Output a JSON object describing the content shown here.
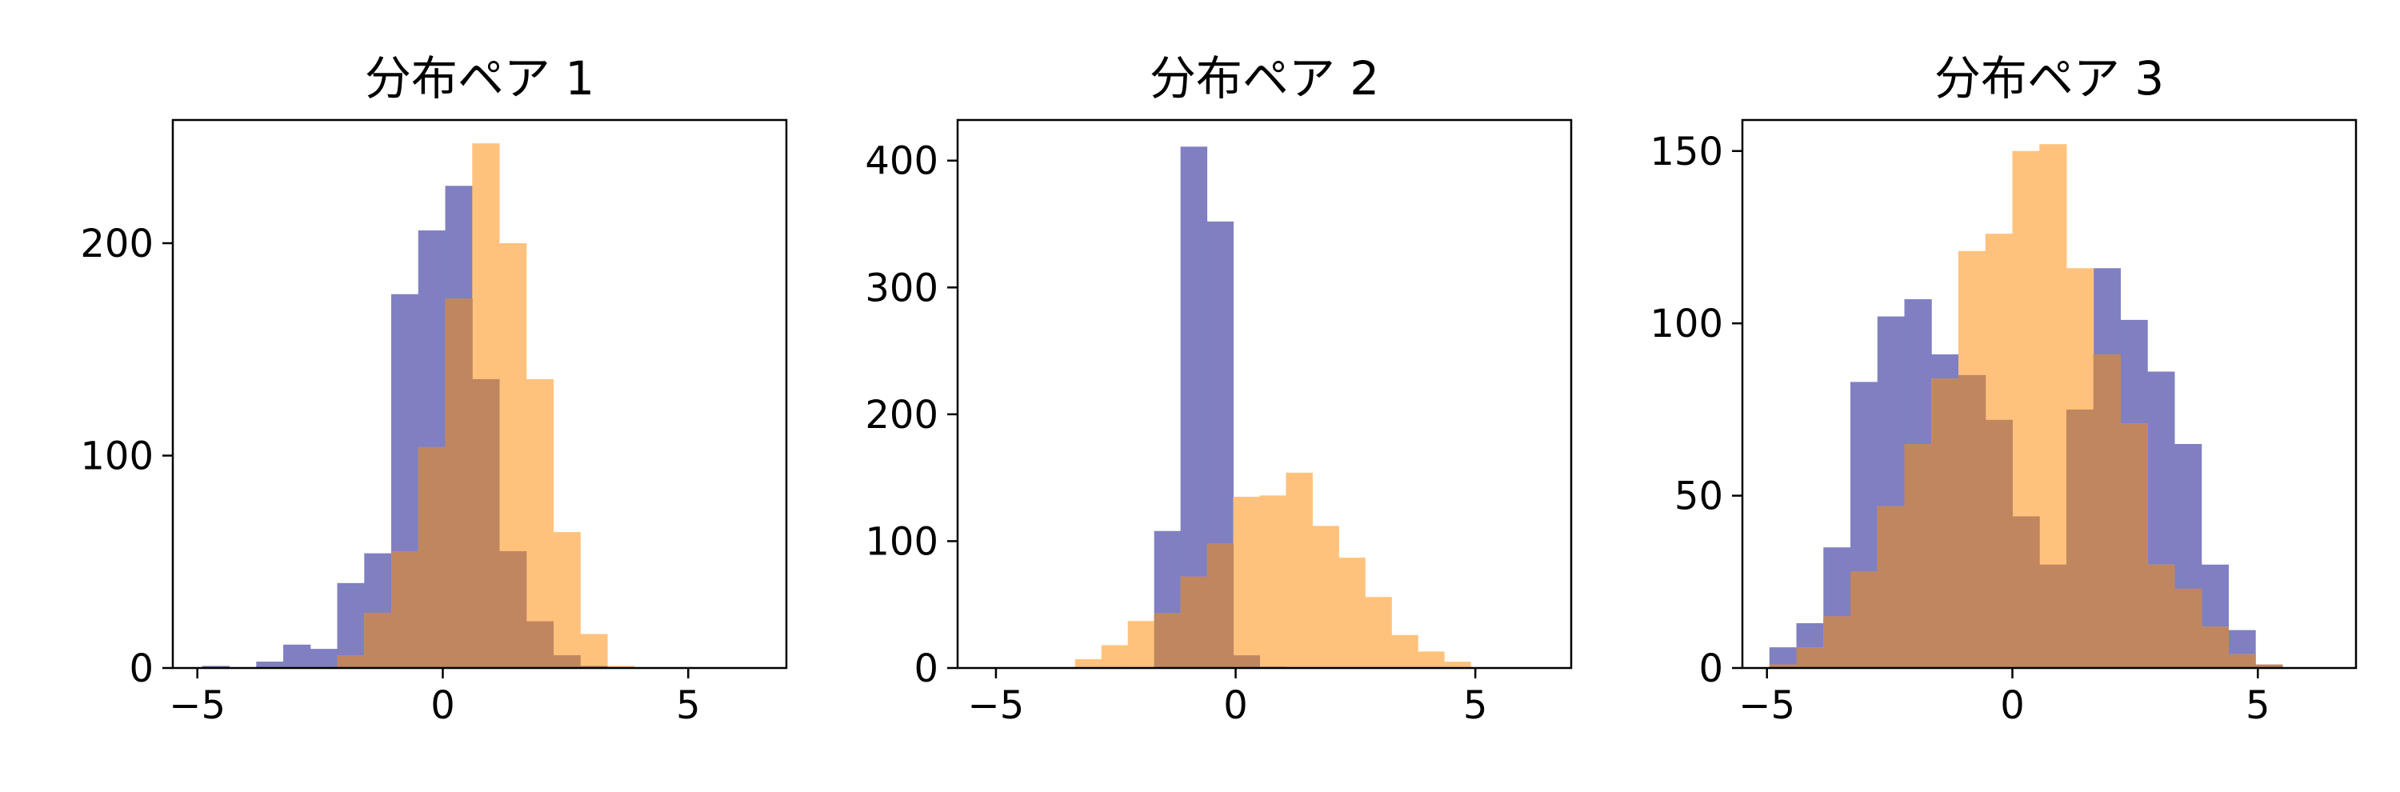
{
  "colors": {
    "series_a": "#7f7fc2",
    "series_b": "#ffc27c",
    "overlap": "#bf8660"
  },
  "chart_data": [
    {
      "type": "histogram",
      "title": "分布ペア 1",
      "xlim": [
        -5.5,
        7
      ],
      "ylim": [
        0,
        258
      ],
      "xticks": [
        -5,
        0,
        5
      ],
      "yticks": [
        0,
        100,
        200
      ],
      "grid": false,
      "bin_edges": [
        -4.9,
        -4.35,
        -3.8,
        -3.25,
        -2.7,
        -2.15,
        -1.6,
        -1.05,
        -0.5,
        0.05,
        0.6,
        1.15,
        1.7,
        2.25,
        2.8,
        3.35,
        3.9,
        4.45,
        5.0,
        5.55,
        6.1
      ],
      "series": [
        {
          "values": [
            1,
            0,
            3,
            11,
            9,
            40,
            54,
            176,
            206,
            227,
            136,
            55,
            22,
            6,
            1,
            0,
            0,
            0,
            0,
            0
          ]
        },
        {
          "values": [
            0,
            0,
            0,
            0,
            0,
            6,
            26,
            55,
            104,
            174,
            247,
            200,
            136,
            64,
            16,
            1,
            0,
            0,
            0,
            0
          ]
        }
      ]
    },
    {
      "type": "histogram",
      "title": "分布ペア 2",
      "xlim": [
        -5.8,
        7
      ],
      "ylim": [
        0,
        432
      ],
      "xticks": [
        -5,
        0,
        5
      ],
      "yticks": [
        0,
        100,
        200,
        300,
        400
      ],
      "grid": false,
      "bin_edges": [
        -3.35,
        -2.8,
        -2.25,
        -1.7,
        -1.15,
        -0.6,
        -0.05,
        0.5,
        1.05,
        1.6,
        2.15,
        2.7,
        3.25,
        3.8,
        4.35,
        4.9,
        5.45,
        6.0,
        6.55,
        7.1,
        7.65
      ],
      "series": [
        {
          "values": [
            0,
            0,
            0,
            108,
            411,
            352,
            10,
            1,
            0,
            0,
            0,
            0,
            0,
            0,
            0,
            0,
            0,
            0,
            0,
            0
          ]
        },
        {
          "values": [
            7,
            18,
            37,
            43,
            72,
            98,
            135,
            136,
            154,
            112,
            87,
            56,
            26,
            13,
            5,
            0,
            0,
            0,
            0,
            0
          ]
        }
      ]
    },
    {
      "type": "histogram",
      "title": "分布ペア 3",
      "xlim": [
        -5.5,
        7
      ],
      "ylim": [
        0,
        159
      ],
      "xticks": [
        -5,
        0,
        5
      ],
      "yticks": [
        0,
        50,
        100,
        150
      ],
      "grid": false,
      "bin_edges": [
        -4.95,
        -4.4,
        -3.85,
        -3.3,
        -2.75,
        -2.2,
        -1.65,
        -1.1,
        -0.55,
        0.0,
        0.55,
        1.1,
        1.65,
        2.2,
        2.75,
        3.3,
        3.85,
        4.4,
        4.95,
        5.5
      ],
      "series": [
        {
          "values": [
            6,
            13,
            35,
            83,
            102,
            107,
            91,
            85,
            72,
            44,
            30,
            75,
            116,
            101,
            86,
            65,
            30,
            11,
            1
          ]
        },
        {
          "values": [
            1,
            6,
            15,
            28,
            47,
            65,
            84,
            121,
            126,
            150,
            152,
            116,
            91,
            71,
            30,
            23,
            12,
            4,
            1
          ]
        }
      ]
    }
  ]
}
